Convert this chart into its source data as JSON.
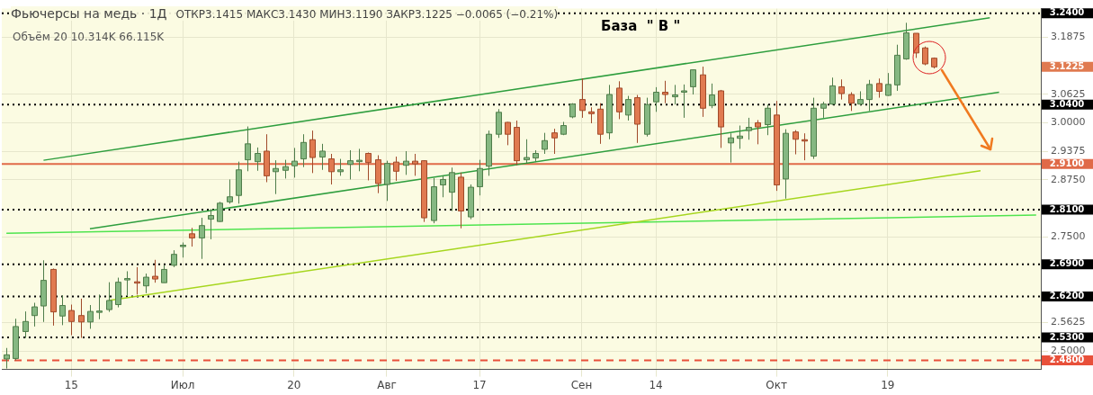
{
  "chart_data": {
    "type": "candlestick",
    "title": "Фьючерсы на медь · 1Д",
    "subtitle": "ОТКР3.1415 МАКС3.1430 МИН3.1190 ЗАКР3.1225 −0.0065 (−0.21%)",
    "categories": [
      null,
      null,
      null,
      null,
      null,
      null,
      null,
      "15",
      null,
      null,
      null,
      null,
      null,
      null,
      null,
      null,
      null,
      null,
      null,
      "Июл",
      null,
      null,
      null,
      null,
      null,
      null,
      null,
      null,
      null,
      null,
      null,
      "20",
      null,
      null,
      null,
      null,
      null,
      null,
      null,
      null,
      null,
      "Авг",
      null,
      null,
      null,
      null,
      null,
      null,
      null,
      null,
      null,
      "17",
      null,
      null,
      null,
      null,
      null,
      null,
      null,
      null,
      null,
      null,
      "Сен",
      null,
      null,
      null,
      null,
      null,
      null,
      null,
      "14",
      null,
      null,
      null,
      null,
      null,
      null,
      null,
      null,
      null,
      null,
      null,
      null,
      "Окт",
      null,
      null,
      null,
      null,
      null,
      null,
      null,
      null,
      null,
      null,
      null,
      "19",
      null,
      null,
      null,
      null,
      null,
      null,
      null,
      null,
      null,
      null,
      null,
      null,
      null,
      null,
      null,
      null
    ],
    "ohlc": [
      [
        2.483,
        2.507,
        2.462,
        2.492
      ],
      [
        2.484,
        2.571,
        2.48,
        2.554
      ],
      [
        2.543,
        2.587,
        2.529,
        2.565
      ],
      [
        2.578,
        2.606,
        2.554,
        2.597
      ],
      [
        2.599,
        2.699,
        2.564,
        2.655
      ],
      [
        2.679,
        2.681,
        2.556,
        2.586
      ],
      [
        2.577,
        2.622,
        2.557,
        2.6
      ],
      [
        2.589,
        2.602,
        2.535,
        2.565
      ],
      [
        2.578,
        2.615,
        2.529,
        2.564
      ],
      [
        2.564,
        2.601,
        2.549,
        2.587
      ],
      [
        2.586,
        2.624,
        2.57,
        2.588
      ],
      [
        2.591,
        2.651,
        2.586,
        2.611
      ],
      [
        2.602,
        2.661,
        2.596,
        2.651
      ],
      [
        2.656,
        2.675,
        2.621,
        2.659
      ],
      [
        2.652,
        2.684,
        2.624,
        2.651
      ],
      [
        2.643,
        2.67,
        2.627,
        2.662
      ],
      [
        2.664,
        2.7,
        2.65,
        2.658
      ],
      [
        2.65,
        2.688,
        2.65,
        2.679
      ],
      [
        2.688,
        2.721,
        2.684,
        2.712
      ],
      [
        2.729,
        2.738,
        2.705,
        2.732
      ],
      [
        2.757,
        2.77,
        2.729,
        2.748
      ],
      [
        2.748,
        2.792,
        2.702,
        2.775
      ],
      [
        2.789,
        2.811,
        2.745,
        2.797
      ],
      [
        2.784,
        2.827,
        2.783,
        2.824
      ],
      [
        2.827,
        2.876,
        2.823,
        2.838
      ],
      [
        2.841,
        2.915,
        2.823,
        2.897
      ],
      [
        2.919,
        2.992,
        2.894,
        2.954
      ],
      [
        2.915,
        2.946,
        2.895,
        2.933
      ],
      [
        2.938,
        2.975,
        2.87,
        2.884
      ],
      [
        2.893,
        2.918,
        2.844,
        2.9
      ],
      [
        2.896,
        2.919,
        2.878,
        2.904
      ],
      [
        2.906,
        2.945,
        2.88,
        2.916
      ],
      [
        2.921,
        2.975,
        2.903,
        2.957
      ],
      [
        2.963,
        2.983,
        2.89,
        2.924
      ],
      [
        2.925,
        2.954,
        2.897,
        2.938
      ],
      [
        2.921,
        2.932,
        2.865,
        2.893
      ],
      [
        2.893,
        2.921,
        2.884,
        2.897
      ],
      [
        2.909,
        2.94,
        2.876,
        2.917
      ],
      [
        2.915,
        2.943,
        2.894,
        2.918
      ],
      [
        2.933,
        2.935,
        2.874,
        2.913
      ],
      [
        2.919,
        2.929,
        2.846,
        2.867
      ],
      [
        2.865,
        2.917,
        2.829,
        2.911
      ],
      [
        2.914,
        2.926,
        2.873,
        2.894
      ],
      [
        2.907,
        2.938,
        2.886,
        2.916
      ],
      [
        2.916,
        2.932,
        2.884,
        2.91
      ],
      [
        2.917,
        2.918,
        2.783,
        2.792
      ],
      [
        2.786,
        2.879,
        2.78,
        2.86
      ],
      [
        2.864,
        2.884,
        2.837,
        2.876
      ],
      [
        2.848,
        2.902,
        2.807,
        2.891
      ],
      [
        2.881,
        2.891,
        2.769,
        2.807
      ],
      [
        2.794,
        2.865,
        2.789,
        2.859
      ],
      [
        2.86,
        2.919,
        2.841,
        2.9
      ],
      [
        2.905,
        2.983,
        2.884,
        2.975
      ],
      [
        2.975,
        3.03,
        2.967,
        3.023
      ],
      [
        3.001,
        3.002,
        2.951,
        2.975
      ],
      [
        2.99,
        3.005,
        2.907,
        2.917
      ],
      [
        2.919,
        2.964,
        2.911,
        2.924
      ],
      [
        2.923,
        2.94,
        2.914,
        2.933
      ],
      [
        2.942,
        2.978,
        2.932,
        2.961
      ],
      [
        2.978,
        2.987,
        2.932,
        2.967
      ],
      [
        2.975,
        3.002,
        2.973,
        2.994
      ],
      [
        3.013,
        3.043,
        3.01,
        3.041
      ],
      [
        3.051,
        3.097,
        3.011,
        3.027
      ],
      [
        3.024,
        3.034,
        2.999,
        3.02
      ],
      [
        3.03,
        3.043,
        2.954,
        2.975
      ],
      [
        2.978,
        3.083,
        2.964,
        3.062
      ],
      [
        3.076,
        3.091,
        3.008,
        3.024
      ],
      [
        3.017,
        3.059,
        3.005,
        3.051
      ],
      [
        3.055,
        3.061,
        2.956,
        2.997
      ],
      [
        2.975,
        3.055,
        2.97,
        3.04
      ],
      [
        3.046,
        3.078,
        3.024,
        3.067
      ],
      [
        3.067,
        3.092,
        3.043,
        3.062
      ],
      [
        3.057,
        3.083,
        3.04,
        3.061
      ],
      [
        3.069,
        3.084,
        3.011,
        3.07
      ],
      [
        3.079,
        3.117,
        3.062,
        3.116
      ],
      [
        3.105,
        3.123,
        3.013,
        3.032
      ],
      [
        3.038,
        3.086,
        3.032,
        3.061
      ],
      [
        3.07,
        3.072,
        2.945,
        2.991
      ],
      [
        2.956,
        2.977,
        2.913,
        2.967
      ],
      [
        2.966,
        2.994,
        2.943,
        2.971
      ],
      [
        2.983,
        3.011,
        2.963,
        2.99
      ],
      [
        3.0,
        3.006,
        2.953,
        2.991
      ],
      [
        2.996,
        3.04,
        2.973,
        3.032
      ],
      [
        3.017,
        3.048,
        2.851,
        2.864
      ],
      [
        2.877,
        2.986,
        2.834,
        2.977
      ],
      [
        2.98,
        2.984,
        2.931,
        2.964
      ],
      [
        2.963,
        2.977,
        2.918,
        2.962
      ],
      [
        2.927,
        3.055,
        2.921,
        3.032
      ],
      [
        3.032,
        3.046,
        3.011,
        3.041
      ],
      [
        3.041,
        3.099,
        3.039,
        3.081
      ],
      [
        3.079,
        3.095,
        3.051,
        3.064
      ],
      [
        3.062,
        3.067,
        3.026,
        3.043
      ],
      [
        3.041,
        3.069,
        3.038,
        3.051
      ],
      [
        3.051,
        3.094,
        3.026,
        3.084
      ],
      [
        3.086,
        3.097,
        3.055,
        3.069
      ],
      [
        3.06,
        3.109,
        3.059,
        3.084
      ],
      [
        3.083,
        3.171,
        3.07,
        3.148
      ],
      [
        3.14,
        3.219,
        3.138,
        3.197
      ],
      [
        3.196,
        3.196,
        3.142,
        3.153
      ],
      [
        3.164,
        3.167,
        3.126,
        3.129
      ],
      [
        3.1415,
        3.143,
        3.119,
        3.1225
      ],
      null,
      null,
      null,
      null,
      null,
      null,
      null,
      null,
      null,
      null,
      null
    ],
    "series": [
      {
        "type": "line",
        "color": "#2e9e3e",
        "values": [
          null,
          null,
          null,
          null,
          2.918,
          null,
          null,
          null,
          null,
          null,
          null,
          null,
          null,
          null,
          null,
          null,
          null,
          null,
          null,
          null,
          null,
          null,
          null,
          null,
          null,
          null,
          null,
          null,
          null,
          null,
          null,
          null,
          null,
          null,
          null,
          null,
          null,
          null,
          null,
          null,
          null,
          null,
          null,
          null,
          null,
          null,
          null,
          null,
          null,
          null,
          null,
          null,
          null,
          null,
          null,
          null,
          null,
          null,
          null,
          null,
          null,
          null,
          null,
          null,
          null,
          null,
          null,
          null,
          null,
          null,
          null,
          null,
          null,
          null,
          null,
          null,
          null,
          null,
          null,
          null,
          null,
          null,
          null,
          null,
          null,
          null,
          null,
          null,
          null,
          null,
          null,
          null,
          null,
          null,
          null,
          null,
          null,
          null,
          null,
          null,
          null,
          null,
          null,
          null,
          null,
          null,
          3.23,
          null,
          null,
          null,
          null,
          null
        ]
      },
      {
        "type": "line",
        "color": "#2e9e3e",
        "values": [
          null,
          null,
          null,
          null,
          null,
          null,
          null,
          null,
          null,
          2.768,
          null,
          null,
          null,
          null,
          null,
          null,
          null,
          null,
          null,
          null,
          null,
          null,
          null,
          null,
          null,
          null,
          null,
          null,
          null,
          null,
          null,
          null,
          null,
          null,
          null,
          null,
          null,
          null,
          null,
          null,
          null,
          null,
          null,
          null,
          null,
          null,
          null,
          null,
          null,
          null,
          null,
          null,
          null,
          null,
          null,
          null,
          null,
          null,
          null,
          null,
          null,
          null,
          null,
          null,
          null,
          null,
          null,
          null,
          null,
          null,
          null,
          null,
          null,
          null,
          null,
          null,
          null,
          null,
          null,
          null,
          null,
          null,
          null,
          null,
          null,
          null,
          null,
          null,
          null,
          null,
          null,
          null,
          null,
          null,
          null,
          null,
          null,
          null,
          null,
          null,
          null,
          null,
          null,
          null,
          null,
          null,
          null,
          3.067,
          null,
          null,
          null,
          null
        ]
      },
      {
        "type": "line",
        "color": "#a6d61e",
        "values": [
          null,
          null,
          null,
          null,
          null,
          null,
          null,
          null,
          null,
          null,
          null,
          2.611,
          null,
          null,
          null,
          null,
          null,
          null,
          null,
          null,
          null,
          null,
          null,
          null,
          null,
          null,
          null,
          null,
          null,
          null,
          null,
          null,
          null,
          null,
          null,
          null,
          null,
          null,
          null,
          null,
          null,
          null,
          null,
          null,
          null,
          null,
          null,
          null,
          null,
          null,
          null,
          null,
          null,
          null,
          null,
          null,
          null,
          null,
          null,
          null,
          null,
          null,
          null,
          null,
          null,
          null,
          null,
          null,
          null,
          null,
          null,
          null,
          null,
          null,
          null,
          null,
          null,
          null,
          null,
          null,
          null,
          null,
          null,
          null,
          null,
          null,
          null,
          null,
          null,
          null,
          null,
          null,
          null,
          null,
          null,
          null,
          null,
          null,
          null,
          null,
          null,
          null,
          null,
          null,
          null,
          2.895,
          null,
          null,
          null,
          null,
          null,
          null
        ]
      },
      {
        "type": "line",
        "color": "#4ee44e",
        "values": [
          2.758,
          null,
          null,
          null,
          null,
          null,
          null,
          null,
          null,
          null,
          null,
          null,
          null,
          null,
          null,
          null,
          null,
          null,
          null,
          null,
          null,
          null,
          null,
          null,
          null,
          null,
          null,
          null,
          null,
          null,
          null,
          null,
          null,
          null,
          null,
          null,
          null,
          null,
          null,
          null,
          null,
          null,
          null,
          null,
          null,
          null,
          null,
          null,
          null,
          null,
          null,
          null,
          null,
          null,
          null,
          null,
          null,
          null,
          null,
          null,
          null,
          null,
          null,
          null,
          null,
          null,
          null,
          null,
          null,
          null,
          null,
          null,
          null,
          null,
          null,
          null,
          null,
          null,
          null,
          null,
          null,
          null,
          null,
          null,
          null,
          null,
          null,
          null,
          null,
          null,
          null,
          null,
          null,
          null,
          null,
          null,
          null,
          null,
          null,
          null,
          null,
          null,
          null,
          null,
          null,
          null,
          null,
          null,
          null,
          null,
          null,
          2.798
        ]
      }
    ],
    "ylim": [
      2.46,
      3.25
    ],
    "yticks": [
      {
        "value": 2.5,
        "label": "2.5000"
      },
      {
        "value": 2.5625,
        "label": "2.5625"
      },
      {
        "value": 2.75,
        "label": "2.7500"
      },
      {
        "value": 2.875,
        "label": "2.8750"
      },
      {
        "value": 2.9375,
        "label": "2.9375"
      },
      {
        "value": 3.0,
        "label": "3.0000"
      },
      {
        "value": 3.0625,
        "label": "3.0625"
      },
      {
        "value": 3.1875,
        "label": "3.1875"
      }
    ],
    "ref_lines": [
      {
        "axis": "y",
        "value": 3.24,
        "label": "3.2400",
        "color": "#000000",
        "line_style": "dotted"
      },
      {
        "axis": "y",
        "value": 3.04,
        "label": "3.0400",
        "color": "#000000",
        "line_style": "dotted"
      },
      {
        "axis": "y",
        "value": 2.91,
        "label": "2.9100",
        "color": "#e06a48",
        "line_style": "solid"
      },
      {
        "axis": "y",
        "value": 2.81,
        "label": "2.8100",
        "color": "#000000",
        "line_style": "dotted"
      },
      {
        "axis": "y",
        "value": 2.69,
        "label": "2.6900",
        "color": "#000000",
        "line_style": "dotted"
      },
      {
        "axis": "y",
        "value": 2.62,
        "label": "2.6200",
        "color": "#000000",
        "line_style": "dotted"
      },
      {
        "axis": "y",
        "value": 2.53,
        "label": "2.5300",
        "color": "#000000",
        "line_style": "dotted"
      },
      {
        "axis": "y",
        "value": 2.48,
        "label": "2.4800",
        "color": "#e8503a",
        "line_style": "dashed"
      }
    ],
    "annotations": [
      "Объём 20 10.314K 66.115K",
      "База  \" В \"",
      "3.1225"
    ],
    "grid": true
  }
}
